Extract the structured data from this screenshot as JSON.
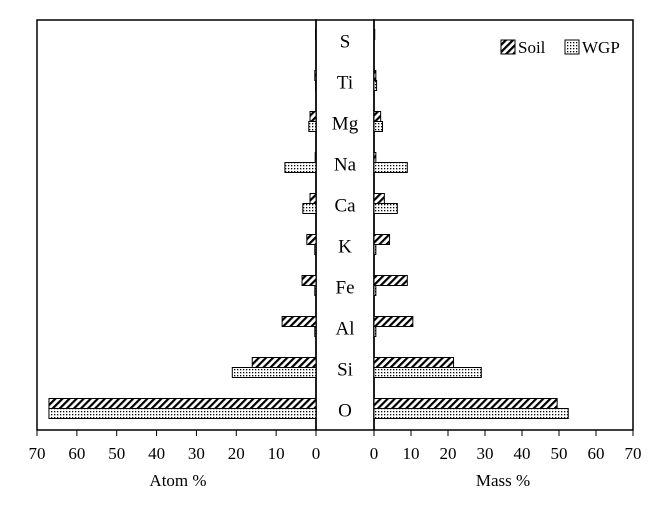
{
  "chart_data": {
    "type": "bar",
    "orientation": "horizontal-butterfly",
    "categories": [
      "S",
      "Ti",
      "Mg",
      "Na",
      "Ca",
      "K",
      "Fe",
      "Al",
      "Si",
      "O"
    ],
    "legend": {
      "position": "top-right",
      "entries": [
        "Soil",
        "WGP"
      ]
    },
    "left_panel": {
      "xlabel": "Atom %",
      "xlim": [
        0,
        70
      ],
      "ticks": [
        "70",
        "60",
        "50",
        "40",
        "30",
        "20",
        "10",
        "0"
      ],
      "series": [
        {
          "name": "Soil",
          "values": [
            0.1,
            0.3,
            1.5,
            0.2,
            1.5,
            2.3,
            3.5,
            8.5,
            16,
            67
          ]
        },
        {
          "name": "WGP",
          "values": [
            0.0,
            0.1,
            1.8,
            7.8,
            3.3,
            0.3,
            0.3,
            0.3,
            21,
            67
          ]
        }
      ]
    },
    "right_panel": {
      "xlabel": "Mass %",
      "xlim": [
        0,
        70
      ],
      "ticks": [
        "0",
        "10",
        "20",
        "30",
        "40",
        "50",
        "60",
        "70"
      ],
      "series": [
        {
          "name": "Soil",
          "values": [
            0.2,
            0.5,
            1.8,
            0.5,
            2.8,
            4.2,
            9,
            10.5,
            21.5,
            49.5
          ]
        },
        {
          "name": "WGP",
          "values": [
            0.0,
            0.7,
            2.3,
            9,
            6.3,
            0.5,
            0.5,
            0.5,
            29,
            52.5
          ]
        }
      ]
    }
  }
}
